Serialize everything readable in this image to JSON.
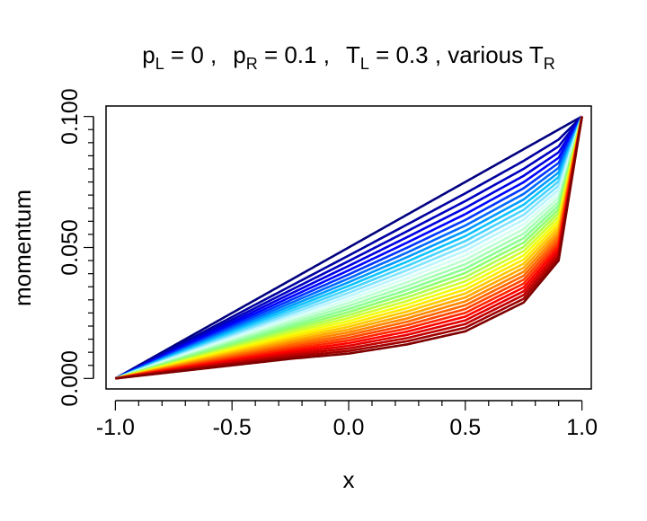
{
  "chart_data": {
    "type": "line",
    "title": {
      "p_left": "p",
      "p_left_sub": "L",
      "p_left_value": " = 0 ,",
      "p_right": "p",
      "p_right_sub": "R",
      "p_right_value": " = 0.1 ,",
      "t_left": "T",
      "t_left_sub": "L",
      "t_left_value": " = 0.3 , various  T",
      "t_right_sub": "R"
    },
    "xlabel": "x",
    "ylabel": "momentum",
    "xlim": [
      -1.0,
      1.0
    ],
    "ylim": [
      0.0,
      0.1
    ],
    "x_ticks": [
      -1.0,
      -0.5,
      0.0,
      0.5,
      1.0
    ],
    "x_tick_labels": [
      "-1.0",
      "-0.5",
      "0.0",
      "0.5",
      "1.0"
    ],
    "y_ticks": [
      0.0,
      0.05,
      0.1
    ],
    "y_tick_labels": [
      "0.000",
      "0.050",
      "0.100"
    ],
    "y_minor_tick_step": 0.005,
    "x_minor_tick_step": 0.1,
    "grid": false,
    "legend": "none",
    "family": {
      "count": 32,
      "description_curve_endpoints": {
        "x_start": -1.0,
        "y_start": 0.0,
        "x_end": 1.0,
        "y_end": 0.1
      },
      "colormap": [
        "#00007f",
        "#0000ff",
        "#00bfff",
        "#e0ffff",
        "#7fff7f",
        "#ffff00",
        "#ff7f00",
        "#ff0000",
        "#7f0000"
      ],
      "sample_x": [
        -1.0,
        -0.75,
        -0.5,
        -0.25,
        0.0,
        0.25,
        0.5,
        0.75,
        0.9,
        1.0
      ],
      "extreme_curves": [
        {
          "y": [
            0.0,
            0.0125,
            0.025,
            0.0375,
            0.05,
            0.0625,
            0.075,
            0.0875,
            0.095,
            0.1
          ]
        },
        {
          "y": [
            0.0,
            0.0025,
            0.005,
            0.0075,
            0.0095,
            0.013,
            0.018,
            0.029,
            0.045,
            0.1
          ]
        }
      ]
    }
  }
}
